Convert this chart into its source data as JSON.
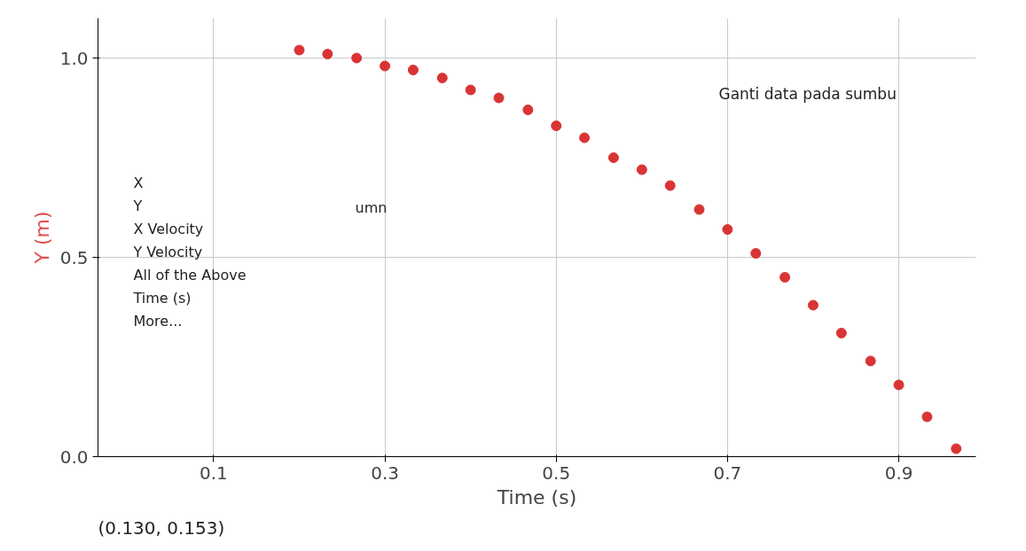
{
  "chart_data": {
    "type": "scatter",
    "xlabel": "Time (s)",
    "ylabel": "Y (m)",
    "x": [
      0.2,
      0.233,
      0.267,
      0.3,
      0.333,
      0.367,
      0.4,
      0.433,
      0.467,
      0.5,
      0.533,
      0.567,
      0.6,
      0.633,
      0.667,
      0.7,
      0.733,
      0.767,
      0.8,
      0.833,
      0.867,
      0.9,
      0.933,
      0.967
    ],
    "series": [
      {
        "color": "#d93434",
        "values": [
          1.02,
          1.01,
          1.0,
          0.98,
          0.97,
          0.95,
          0.92,
          0.9,
          0.87,
          0.83,
          0.8,
          0.75,
          0.72,
          0.68,
          0.62,
          0.57,
          0.51,
          0.45,
          0.38,
          0.31,
          0.24,
          0.18,
          0.1,
          0.02
        ]
      }
    ],
    "xlim": [
      -0.035,
      0.99
    ],
    "ylim": [
      0,
      1.1
    ],
    "xticks": [
      0.1,
      0.3,
      0.5,
      0.7,
      0.9
    ],
    "yticks": [
      {
        "value": 0,
        "label": "0.0"
      },
      0.5,
      {
        "value": 1,
        "label": "1.0"
      }
    ],
    "grid": true,
    "marker": "circle",
    "annotations": [
      "Ganti data pada sumbu",
      "X",
      "Y",
      "X Velocity",
      "Y Velocity",
      "All of the Above",
      "Time (s)",
      "More...",
      "umn",
      "(0.130, 0.153)"
    ]
  }
}
